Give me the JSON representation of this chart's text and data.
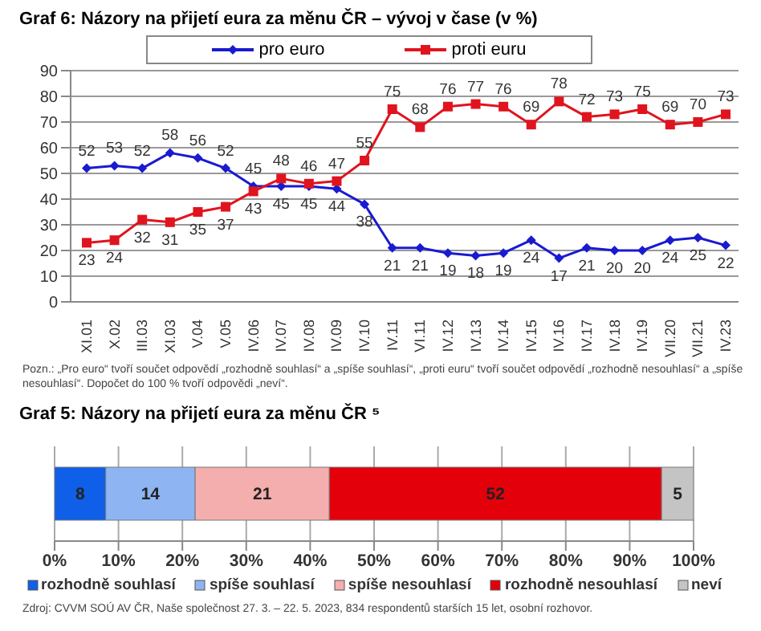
{
  "chart_data": [
    {
      "type": "line",
      "title": "Graf 6: Názory na přijetí eura za měnu ČR – vývoj v čase (v %)",
      "categories": [
        "XI.01",
        "X.02",
        "III.03",
        "XI.03",
        "V.04",
        "V.05",
        "IV.06",
        "IV.07",
        "IV.08",
        "IV.09",
        "IV.10",
        "IV.11",
        "VI.11",
        "IV.12",
        "IV.13",
        "IV.14",
        "IV.15",
        "IV.16",
        "IV.17",
        "IV.18",
        "IV.19",
        "VII.20",
        "VII.21",
        "IV.23"
      ],
      "series": [
        {
          "name": "pro euro",
          "color": "#1a1ad0",
          "marker": "diamond",
          "values": [
            52,
            53,
            52,
            58,
            56,
            52,
            45,
            45,
            45,
            44,
            38,
            21,
            21,
            19,
            18,
            19,
            24,
            17,
            21,
            20,
            20,
            24,
            25,
            22
          ]
        },
        {
          "name": "proti euru",
          "color": "#e0141e",
          "marker": "square",
          "values": [
            23,
            24,
            32,
            31,
            35,
            37,
            43,
            48,
            46,
            47,
            55,
            75,
            68,
            76,
            77,
            76,
            69,
            78,
            72,
            73,
            75,
            69,
            70,
            73
          ]
        }
      ],
      "ylim": [
        0,
        90
      ],
      "yticks": [
        0,
        10,
        20,
        30,
        40,
        50,
        60,
        70,
        80,
        90
      ],
      "grid": "y",
      "legend": "top",
      "data_labels": true,
      "annotations": [
        "Pozn.: „Pro euro“ tvoří součet odpovědí „rozhodně souhlasí“ a „spíše souhlasí“, „proti euru“ tvoří součet odpovědí „rozhodně nesouhlasí“ a „spíše nesouhlasí“. Dopočet do 100 % tvoří odpovědi „neví“."
      ]
    },
    {
      "type": "bar",
      "title": "Graf 5: Názory na přijetí eura za měnu ČR ⁵",
      "categories": [
        null
      ],
      "orientation": "horizontal",
      "stacked": true,
      "series": [
        {
          "name": "rozhodně souhlasí",
          "color": "#0f5fe8",
          "values": [
            8
          ]
        },
        {
          "name": "spíše souhlasí",
          "color": "#8eb4f2",
          "values": [
            14
          ]
        },
        {
          "name": "spíše nesouhlasí",
          "color": "#f5aeae",
          "values": [
            21
          ]
        },
        {
          "name": "rozhodně nesouhlasí",
          "color": "#e4000b",
          "values": [
            52
          ]
        },
        {
          "name": "neví",
          "color": "#c4c4c4",
          "values": [
            5
          ]
        }
      ],
      "xlim": [
        0,
        100
      ],
      "xticks": [
        {
          "value": 0,
          "label": "0%"
        },
        {
          "value": 10,
          "label": "10%"
        },
        {
          "value": 20,
          "label": "20%"
        },
        {
          "value": 30,
          "label": "30%"
        },
        {
          "value": 40,
          "label": "40%"
        },
        {
          "value": 50,
          "label": "50%"
        },
        {
          "value": 60,
          "label": "60%"
        },
        {
          "value": 70,
          "label": "70%"
        },
        {
          "value": 80,
          "label": "80%"
        },
        {
          "value": 90,
          "label": "90%"
        },
        {
          "value": 100,
          "label": "100%"
        }
      ],
      "grid": "x",
      "legend": "bottom",
      "data_labels": true,
      "annotations": [
        "Zdroj: CVVM SOÚ AV ČR, Naše společnost 27. 3. – 22. 5. 2023, 834 respondentů starších 15 let, osobní rozhovor."
      ]
    }
  ]
}
